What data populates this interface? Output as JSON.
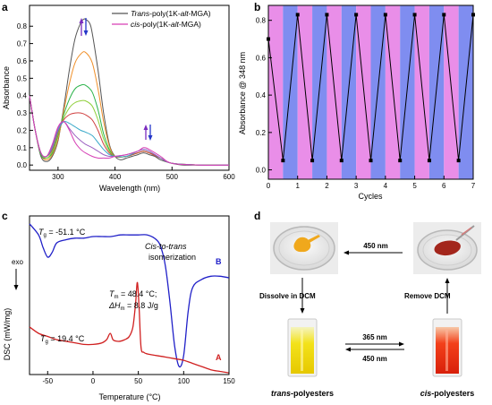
{
  "panels": {
    "a": {
      "letter": "a",
      "xlabel": "Wavelength (nm)",
      "ylabel": "Absorbance",
      "xticks": [
        300,
        400,
        500,
        600
      ],
      "yticks": [
        "0.0",
        "0.1",
        "0.2",
        "0.3",
        "0.4",
        "0.5",
        "0.6",
        "0.7",
        "0.8"
      ],
      "legend": [
        {
          "prefix": "",
          "italic": "Trans",
          "mid": "-poly(1K-",
          "italic2": "alt",
          "suffix": "-MGA)",
          "color": "#555555"
        },
        {
          "prefix": "",
          "italic": "cis",
          "mid": "-poly(1K-",
          "italic2": "alt",
          "suffix": "-MGA)",
          "color": "#d63fb5"
        }
      ]
    },
    "b": {
      "letter": "b",
      "xlabel": "Cycles",
      "ylabel": "Absorbance @ 348 nm",
      "xticks": [
        "0",
        "1",
        "2",
        "3",
        "4",
        "5",
        "6",
        "7"
      ],
      "yticks": [
        "0.0",
        "0.2",
        "0.4",
        "0.6",
        "0.8"
      ]
    },
    "c": {
      "letter": "c",
      "xlabel": "Temperature (°C)",
      "ylabel": "DSC (mW/mg)",
      "exo": "exo",
      "xticks": [
        "-50",
        "0",
        "50",
        "100",
        "150"
      ],
      "annotations": {
        "tg_b": "T",
        "tg_b_sub": "g",
        "tg_b_val": " = -51.1 °C",
        "iso1": "Cis-to-trans",
        "iso2": "isomerization",
        "tm": "T",
        "tm_sub": "m",
        "tm_val": " = 48.4 °C;",
        "hm_pre": "ΔH",
        "hm_sub": "m",
        "hm_val": " = 8.8 J/g",
        "tg_a": "T",
        "tg_a_sub": "g",
        "tg_a_val": " = 19.4 °C",
        "label_b": "B",
        "label_a": "A"
      }
    },
    "d": {
      "letter": "d",
      "arrow_top": "450 nm",
      "left_label": "Dissolve in  DCM",
      "right_label": "Remove DCM",
      "mid_top": "365 nm",
      "mid_bottom": "450 nm",
      "trans_label_italic": "trans",
      "trans_label_rest": "-polyesters",
      "cis_label_italic": "cis",
      "cis_label_rest": "-polyesters"
    }
  },
  "chart_data": [
    {
      "type": "line",
      "title": "",
      "xlabel": "Wavelength (nm)",
      "ylabel": "Absorbance",
      "xlim": [
        250,
        600
      ],
      "ylim": [
        -0.03,
        0.92
      ],
      "legend_position": "top-right",
      "series": [
        {
          "name": "Trans-poly(1K-alt-MGA)",
          "color": "#555555",
          "x": [
            250,
            260,
            270,
            280,
            290,
            300,
            310,
            320,
            330,
            340,
            345,
            348,
            355,
            360,
            370,
            380,
            390,
            400,
            410,
            420,
            430,
            440,
            450,
            460,
            470,
            480,
            500,
            520,
            550,
            600
          ],
          "y": [
            0.4,
            0.2,
            0.05,
            0.02,
            0.05,
            0.14,
            0.33,
            0.55,
            0.73,
            0.82,
            0.84,
            0.84,
            0.82,
            0.76,
            0.55,
            0.3,
            0.12,
            0.05,
            0.03,
            0.04,
            0.05,
            0.06,
            0.07,
            0.06,
            0.05,
            0.03,
            0.01,
            0.0,
            0.0,
            0.0
          ]
        },
        {
          "name": "",
          "color": "#f0902a",
          "x": [
            250,
            260,
            270,
            280,
            290,
            300,
            310,
            320,
            330,
            340,
            348,
            360,
            370,
            380,
            390,
            400,
            420,
            440,
            450,
            460,
            480,
            500,
            550,
            600
          ],
          "y": [
            0.4,
            0.2,
            0.06,
            0.03,
            0.06,
            0.15,
            0.31,
            0.47,
            0.59,
            0.64,
            0.65,
            0.59,
            0.44,
            0.25,
            0.11,
            0.05,
            0.05,
            0.07,
            0.08,
            0.07,
            0.04,
            0.01,
            0.0,
            0.0
          ]
        },
        {
          "name": "",
          "color": "#2bb34a",
          "x": [
            250,
            260,
            270,
            280,
            290,
            300,
            310,
            320,
            330,
            340,
            348,
            360,
            370,
            380,
            390,
            400,
            420,
            440,
            450,
            460,
            480,
            500,
            550,
            600
          ],
          "y": [
            0.4,
            0.2,
            0.06,
            0.04,
            0.07,
            0.17,
            0.29,
            0.38,
            0.44,
            0.46,
            0.46,
            0.42,
            0.32,
            0.18,
            0.09,
            0.05,
            0.05,
            0.07,
            0.08,
            0.07,
            0.04,
            0.01,
            0.0,
            0.0
          ]
        },
        {
          "name": "",
          "color": "#8fcf3a",
          "x": [
            250,
            260,
            270,
            280,
            290,
            300,
            310,
            320,
            330,
            340,
            348,
            360,
            370,
            380,
            390,
            400,
            420,
            440,
            450,
            460,
            480,
            500,
            550,
            600
          ],
          "y": [
            0.4,
            0.2,
            0.07,
            0.04,
            0.08,
            0.18,
            0.27,
            0.33,
            0.36,
            0.37,
            0.37,
            0.34,
            0.26,
            0.15,
            0.08,
            0.05,
            0.05,
            0.07,
            0.08,
            0.07,
            0.04,
            0.01,
            0.0,
            0.0
          ]
        },
        {
          "name": "",
          "color": "#d04040",
          "x": [
            250,
            260,
            270,
            280,
            290,
            300,
            310,
            320,
            330,
            340,
            348,
            360,
            370,
            380,
            390,
            400,
            420,
            440,
            450,
            460,
            480,
            500,
            550,
            600
          ],
          "y": [
            0.4,
            0.2,
            0.07,
            0.05,
            0.09,
            0.19,
            0.26,
            0.29,
            0.3,
            0.3,
            0.29,
            0.26,
            0.2,
            0.12,
            0.07,
            0.05,
            0.05,
            0.07,
            0.08,
            0.07,
            0.04,
            0.01,
            0.0,
            0.0
          ]
        },
        {
          "name": "",
          "color": "#3aa9c9",
          "x": [
            250,
            260,
            270,
            280,
            290,
            300,
            310,
            320,
            330,
            340,
            348,
            360,
            370,
            380,
            390,
            400,
            420,
            440,
            450,
            460,
            480,
            500,
            550,
            600
          ],
          "y": [
            0.4,
            0.2,
            0.07,
            0.05,
            0.1,
            0.2,
            0.25,
            0.24,
            0.22,
            0.2,
            0.19,
            0.17,
            0.13,
            0.09,
            0.06,
            0.05,
            0.05,
            0.08,
            0.09,
            0.08,
            0.04,
            0.01,
            0.0,
            0.0
          ]
        },
        {
          "name": "",
          "color": "#9b5fc0",
          "x": [
            250,
            260,
            270,
            280,
            290,
            300,
            310,
            320,
            330,
            340,
            348,
            360,
            370,
            380,
            390,
            400,
            420,
            440,
            450,
            460,
            480,
            500,
            550,
            600
          ],
          "y": [
            0.4,
            0.2,
            0.07,
            0.05,
            0.11,
            0.21,
            0.25,
            0.21,
            0.17,
            0.14,
            0.12,
            0.1,
            0.08,
            0.06,
            0.05,
            0.05,
            0.06,
            0.08,
            0.09,
            0.08,
            0.04,
            0.01,
            0.0,
            0.0
          ]
        },
        {
          "name": "cis-poly(1K-alt-MGA)",
          "color": "#d63fb5",
          "x": [
            250,
            260,
            270,
            280,
            290,
            300,
            310,
            320,
            330,
            340,
            348,
            360,
            370,
            380,
            390,
            400,
            420,
            440,
            450,
            460,
            480,
            500,
            550,
            600
          ],
          "y": [
            0.4,
            0.2,
            0.07,
            0.05,
            0.12,
            0.22,
            0.25,
            0.2,
            0.13,
            0.09,
            0.07,
            0.05,
            0.04,
            0.04,
            0.04,
            0.05,
            0.06,
            0.08,
            0.1,
            0.09,
            0.05,
            0.01,
            0.0,
            0.0
          ]
        }
      ]
    },
    {
      "type": "line",
      "title": "",
      "xlabel": "Cycles",
      "ylabel": "Absorbance @ 348 nm",
      "xlim": [
        0,
        7
      ],
      "ylim": [
        -0.05,
        0.88
      ],
      "grid": false,
      "shaded_bands": "alternating pink/blue half-cycles",
      "series": [
        {
          "name": "",
          "color": "#000000",
          "x": [
            0,
            0.5,
            1,
            1.5,
            2,
            2.5,
            3,
            3.5,
            4,
            4.5,
            5,
            5.5,
            6,
            6.5,
            7
          ],
          "y": [
            0.7,
            0.05,
            0.83,
            0.05,
            0.83,
            0.05,
            0.83,
            0.05,
            0.83,
            0.05,
            0.83,
            0.05,
            0.83,
            0.05,
            0.83
          ]
        }
      ]
    },
    {
      "type": "line",
      "title": "",
      "xlabel": "Temperature (°C)",
      "ylabel": "DSC (mW/mg)",
      "xlim": [
        -70,
        150
      ],
      "series": [
        {
          "name": "B",
          "color": "#2020c8",
          "x": [
            -70,
            -60,
            -55,
            -50,
            -45,
            -40,
            -30,
            -20,
            -10,
            0,
            10,
            20,
            30,
            40,
            50,
            60,
            70,
            75,
            80,
            85,
            90,
            95,
            100,
            105,
            110,
            120,
            130,
            140,
            150
          ],
          "y": [
            0.95,
            0.88,
            0.8,
            0.74,
            0.77,
            0.83,
            0.85,
            0.86,
            0.86,
            0.87,
            0.87,
            0.87,
            0.88,
            0.88,
            0.88,
            0.88,
            0.85,
            0.8,
            0.68,
            0.45,
            0.18,
            0.05,
            0.12,
            0.4,
            0.55,
            0.6,
            0.62,
            0.62,
            0.61
          ]
        },
        {
          "name": "A",
          "color": "#d02020",
          "x": [
            -70,
            -60,
            -50,
            -40,
            -30,
            -20,
            -10,
            0,
            10,
            15,
            19,
            22,
            26,
            30,
            35,
            40,
            44,
            47,
            49,
            51,
            53,
            56,
            60,
            70,
            80,
            90,
            100,
            110,
            120,
            130,
            140,
            150
          ],
          "y": [
            0.3,
            0.26,
            0.24,
            0.22,
            0.21,
            0.2,
            0.19,
            0.19,
            0.2,
            0.22,
            0.26,
            0.22,
            0.21,
            0.21,
            0.22,
            0.24,
            0.3,
            0.45,
            0.58,
            0.4,
            0.17,
            0.14,
            0.13,
            0.12,
            0.11,
            0.1,
            0.09,
            0.07,
            0.05,
            0.03,
            0.02,
            0.01
          ]
        }
      ]
    }
  ]
}
